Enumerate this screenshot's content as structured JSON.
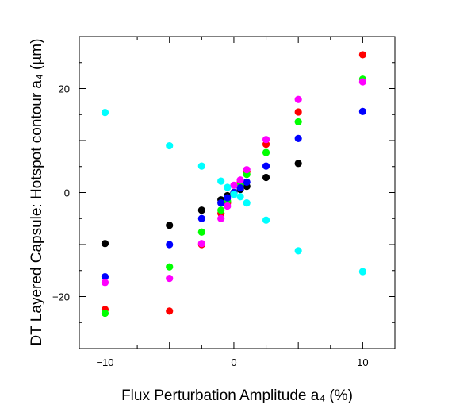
{
  "chart_data": {
    "type": "scatter",
    "title": "",
    "xlabel": "Flux Perturbation Amplitude a₄ (%)",
    "ylabel": "DT Layered Capsule: Hotspot contour a₄ (µm)",
    "xlim": [
      -12,
      12.5
    ],
    "ylim": [
      -30,
      30
    ],
    "x_ticks": [
      -10,
      0,
      10
    ],
    "x_tick_labels": [
      "−10",
      "0",
      "10"
    ],
    "y_ticks": [
      -20,
      0,
      20
    ],
    "y_tick_labels": [
      "−20",
      "0",
      "20"
    ],
    "grid": false,
    "legend": "none",
    "series": [
      {
        "color": "#000000",
        "points": [
          [
            -10,
            -9.8
          ],
          [
            -5,
            -6.3
          ],
          [
            -2.5,
            -3.4
          ],
          [
            -1,
            -1.4
          ],
          [
            -0.5,
            -0.6
          ],
          [
            0,
            0
          ],
          [
            0.5,
            0.6
          ],
          [
            1,
            1.2
          ],
          [
            2.5,
            2.9
          ],
          [
            5,
            5.6
          ]
        ]
      },
      {
        "color": "#ff0000",
        "points": [
          [
            -10,
            -22.5
          ],
          [
            -5,
            -22.8
          ],
          [
            -2.5,
            -10
          ],
          [
            -1,
            -4
          ],
          [
            -0.5,
            -2
          ],
          [
            0,
            0
          ],
          [
            0.5,
            2
          ],
          [
            1,
            4
          ],
          [
            2.5,
            9.3
          ],
          [
            5,
            15.5
          ],
          [
            10,
            26.5
          ]
        ]
      },
      {
        "color": "#00ff00",
        "points": [
          [
            -10,
            -23.2
          ],
          [
            -5,
            -14.3
          ],
          [
            -2.5,
            -7.6
          ],
          [
            -1,
            -3.4
          ],
          [
            -0.5,
            -1.6
          ],
          [
            0,
            0
          ],
          [
            0.5,
            1.5
          ],
          [
            1,
            3.5
          ],
          [
            2.5,
            7.7
          ],
          [
            5,
            13.6
          ],
          [
            10,
            21.8
          ]
        ]
      },
      {
        "color": "#0000ff",
        "points": [
          [
            -10,
            -16.2
          ],
          [
            -5,
            -10
          ],
          [
            -2.5,
            -5
          ],
          [
            -1,
            -2
          ],
          [
            -0.5,
            -1
          ],
          [
            0,
            0
          ],
          [
            0.5,
            0.9
          ],
          [
            1,
            2
          ],
          [
            2.5,
            5.1
          ],
          [
            5,
            10.4
          ],
          [
            10,
            15.6
          ]
        ]
      },
      {
        "color": "#ff00ff",
        "points": [
          [
            -10,
            -17.3
          ],
          [
            -5,
            -16.5
          ],
          [
            -2.5,
            -9.8
          ],
          [
            -1,
            -5
          ],
          [
            -0.5,
            -2.6
          ],
          [
            0,
            1.4
          ],
          [
            0.5,
            2.4
          ],
          [
            1,
            4.4
          ],
          [
            2.5,
            10.2
          ],
          [
            5,
            17.9
          ],
          [
            10,
            21.3
          ]
        ]
      },
      {
        "color": "#00ffff",
        "points": [
          [
            -10,
            15.4
          ],
          [
            -5,
            9
          ],
          [
            -2.5,
            5.1
          ],
          [
            -1,
            2.2
          ],
          [
            -0.5,
            1
          ],
          [
            0,
            -0.3
          ],
          [
            0.5,
            -0.8
          ],
          [
            1,
            -2
          ],
          [
            2.5,
            -5.3
          ],
          [
            5,
            -11.2
          ],
          [
            10,
            -15.2
          ]
        ]
      }
    ]
  }
}
